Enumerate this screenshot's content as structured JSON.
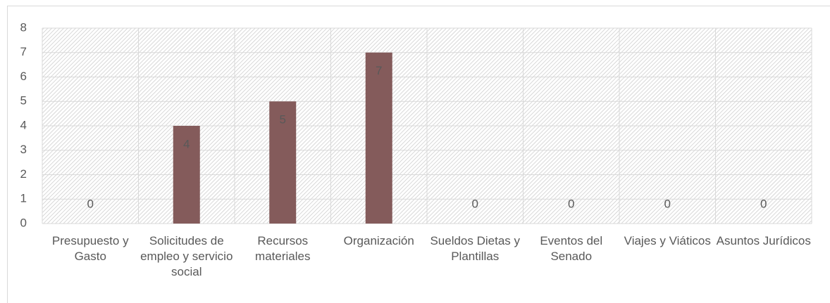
{
  "chart_data": {
    "type": "bar",
    "categories": [
      "Presupuesto y Gasto",
      "Solicitudes de empleo y servicio social",
      "Recursos materiales",
      "Organización",
      "Sueldos Dietas y Plantillas",
      "Eventos del Senado",
      "Viajes y Viáticos",
      "Asuntos Jurídicos"
    ],
    "values": [
      0,
      4,
      5,
      7,
      0,
      0,
      0,
      0
    ],
    "color": "#845b5b",
    "ylim": [
      0,
      8
    ],
    "yticks": [
      0,
      1,
      2,
      3,
      4,
      5,
      6,
      7,
      8
    ],
    "grid": true
  }
}
